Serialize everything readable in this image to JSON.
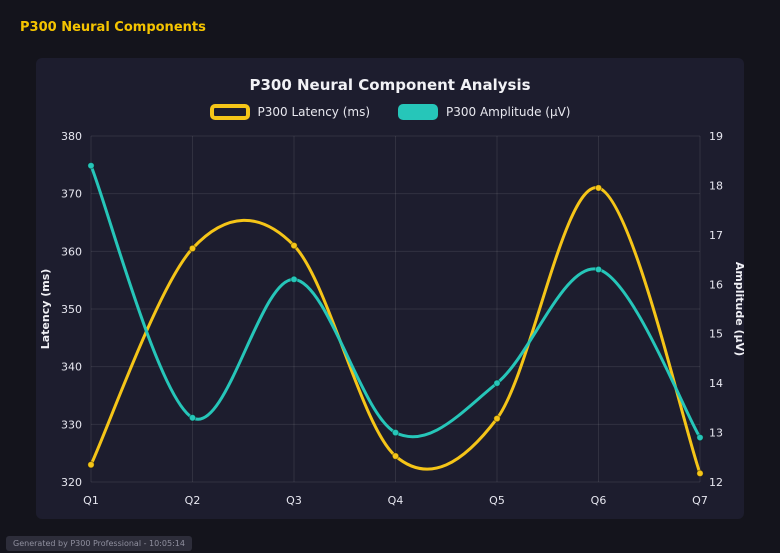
{
  "header": {
    "title": "P300 Neural Components"
  },
  "footer": {
    "text": "Generated by P300 Professional - 10:05:14"
  },
  "chart_data": {
    "type": "line",
    "title": "P300 Neural Component Analysis",
    "categories": [
      "Q1",
      "Q2",
      "Q3",
      "Q4",
      "Q5",
      "Q6",
      "Q7"
    ],
    "series": [
      {
        "name": "P300 Latency (ms)",
        "axis": "left",
        "color": "#f5c518",
        "legend_style": "outline",
        "values": [
          323,
          360.5,
          361,
          324.5,
          331,
          371,
          321.5
        ]
      },
      {
        "name": "P300 Amplitude (μV)",
        "axis": "right",
        "color": "#26c6b9",
        "legend_style": "filled",
        "values": [
          18.4,
          13.3,
          16.1,
          13.0,
          14.0,
          16.3,
          12.9
        ]
      }
    ],
    "y_left": {
      "label": "Latency (ms)",
      "min": 320,
      "max": 380,
      "step": 10
    },
    "y_right": {
      "label": "Amplitude (μV)",
      "min": 12,
      "max": 19,
      "step": 1
    },
    "grid": true,
    "legend_position": "top",
    "colors": {
      "panel_background": "#1d1d2e",
      "page_background": "#14141c",
      "grid": "rgba(255,255,255,0.09)",
      "tick": "#e6e6ef",
      "axis_title": "#f0f0f5",
      "header_accent": "#f5c400"
    }
  }
}
